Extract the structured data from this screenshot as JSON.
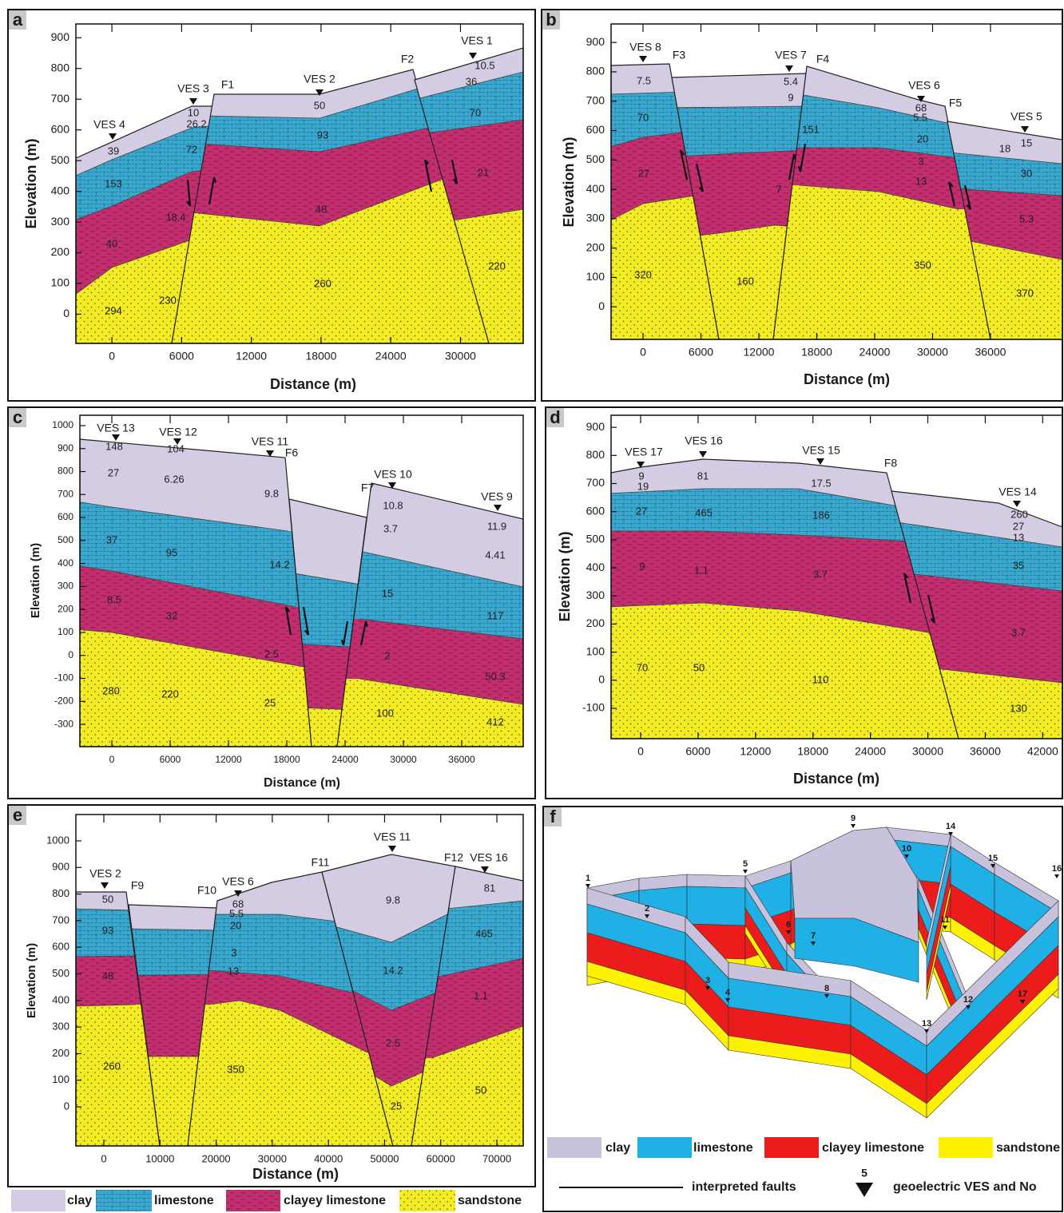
{
  "panels": [
    {
      "label": "a",
      "ylabel": "Elevation (m)",
      "xlabel": "Distance (m)",
      "xlim": [
        -3100,
        35400
      ],
      "ylim": [
        -95,
        945
      ],
      "xticks": [
        0,
        6000,
        12000,
        18000,
        24000,
        30000
      ],
      "yticks": [
        0,
        100,
        200,
        300,
        400,
        500,
        600,
        700,
        800,
        900
      ],
      "ves": [
        "VES 4",
        "VES 3",
        "VES 2",
        "VES 1"
      ],
      "faults": [
        "F1",
        "F2"
      ],
      "values": [
        39,
        26.2,
        10,
        50,
        10.5,
        36,
        70,
        153,
        72,
        93,
        48,
        21,
        18.4,
        40,
        230,
        294,
        260,
        220
      ]
    },
    {
      "label": "b",
      "ylabel": "Elevation (m)",
      "xlabel": "Distance (m)",
      "xlim": [
        -3310,
        43450
      ],
      "ylim": [
        -111,
        963
      ],
      "xticks": [
        0,
        6000,
        12000,
        18000,
        24000,
        30000,
        36000
      ],
      "yticks": [
        0,
        100,
        200,
        300,
        400,
        500,
        600,
        700,
        800,
        900
      ],
      "ves": [
        "VES 8",
        "VES 7",
        "VES 6",
        "VES 5"
      ],
      "faults": [
        "F3",
        "F4",
        "F5"
      ],
      "values": [
        7.5,
        5.4,
        9,
        68,
        5.5,
        15,
        18,
        70,
        151,
        20,
        30,
        3,
        27,
        7,
        13,
        5.3,
        320,
        160,
        350,
        370
      ]
    },
    {
      "label": "c",
      "ylabel": "Elevation (m)",
      "xlabel": "Distance (m)",
      "xlim": [
        -3290,
        42330
      ],
      "ylim": [
        -397,
        1045
      ],
      "xticks": [
        0,
        6000,
        12000,
        18000,
        24000,
        30000,
        36000
      ],
      "yticks": [
        -300,
        -200,
        -100,
        0,
        100,
        200,
        300,
        400,
        500,
        600,
        700,
        800,
        900,
        1000
      ],
      "ves": [
        "VES 13",
        "VES 12",
        "VES 11",
        "VES 10",
        "VES 9"
      ],
      "faults": [
        "F6",
        "F7"
      ],
      "values": [
        148,
        104,
        27,
        6.26,
        9.8,
        10.8,
        3.7,
        11.9,
        4.41,
        37,
        95,
        14.2,
        15,
        117,
        8.5,
        32,
        2.5,
        2,
        50.3,
        280,
        220,
        25,
        100,
        412
      ]
    },
    {
      "label": "d",
      "ylabel": "Elevation (m)",
      "xlabel": "Distance (m)",
      "xlim": [
        -3090,
        44060
      ],
      "ylim": [
        -208,
        943
      ],
      "xticks": [
        0,
        6000,
        12000,
        18000,
        24000,
        30000,
        36000,
        42000
      ],
      "yticks": [
        -100,
        0,
        100,
        200,
        300,
        400,
        500,
        600,
        700,
        800,
        900
      ],
      "ves": [
        "VES 17",
        "VES 16",
        "VES 15",
        "VES 14"
      ],
      "faults": [
        "F8"
      ],
      "values": [
        9,
        81,
        17.5,
        19,
        260,
        27,
        13,
        27,
        465,
        186,
        35,
        9,
        1.1,
        3.7,
        3.7,
        70,
        50,
        110,
        130
      ]
    },
    {
      "label": "e",
      "ylabel": "Elevation (m)",
      "xlabel": "Distance (m)",
      "xlim": [
        -4980,
        74690
      ],
      "ylim": [
        -147,
        1099
      ],
      "xticks": [
        0,
        10000,
        20000,
        30000,
        40000,
        50000,
        60000,
        70000
      ],
      "yticks": [
        0,
        100,
        200,
        300,
        400,
        500,
        600,
        700,
        800,
        900,
        1000
      ],
      "ves": [
        "VES 2",
        "VES 6",
        "VES 11",
        "VES 16"
      ],
      "faults": [
        "F9",
        "F10",
        "F11",
        "F12"
      ],
      "values": [
        50,
        68,
        5.5,
        9.8,
        81,
        20,
        93,
        465,
        3,
        14.2,
        48,
        13,
        1.1,
        2.5,
        260,
        350,
        50,
        25
      ]
    }
  ],
  "legend": [
    "clay",
    "limestone",
    "clayey limestone",
    "sandstone"
  ],
  "block_diagram": {
    "label": "f",
    "ves_numbers": [
      1,
      2,
      3,
      4,
      5,
      6,
      7,
      8,
      9,
      10,
      11,
      12,
      13,
      14,
      15,
      16,
      17
    ],
    "legend": [
      "clay",
      "limestone",
      "clayey limestone",
      "sandstone"
    ],
    "faults_label": "interpreted faults",
    "ves_label": "geoelectric VES and No",
    "ves_example": 5
  }
}
